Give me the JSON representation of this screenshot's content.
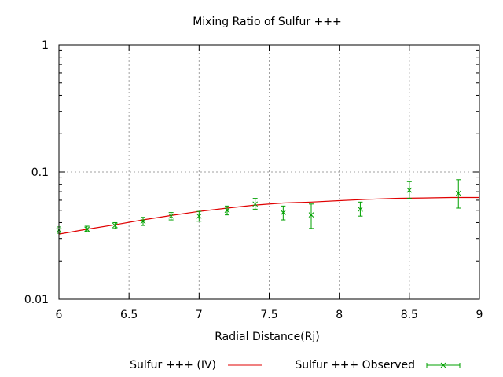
{
  "chart_data": {
    "type": "line",
    "title": "Mixing Ratio of Sulfur +++",
    "xlabel": "Radial Distance(Rj)",
    "ylabel": "",
    "xlim": [
      6,
      9
    ],
    "ylim": [
      0.01,
      1
    ],
    "y_scale": "log",
    "grid": true,
    "legend_position": "bottom",
    "x_ticks": [
      6,
      6.5,
      7,
      7.5,
      8,
      8.5,
      9
    ],
    "x_tick_labels": [
      "6",
      "6.5",
      "7",
      "7.5",
      "8",
      "8.5",
      "9"
    ],
    "y_ticks": [
      0.01,
      0.1,
      1
    ],
    "y_tick_labels": [
      "0.01",
      "0.1",
      "1"
    ],
    "series": [
      {
        "name": "Sulfur +++ (IV)",
        "kind": "line",
        "color": "#e00000",
        "x": [
          6.0,
          6.2,
          6.4,
          6.6,
          6.8,
          7.0,
          7.2,
          7.4,
          7.6,
          7.8,
          8.0,
          8.2,
          8.4,
          8.6,
          8.8,
          9.0
        ],
        "y": [
          0.0325,
          0.0355,
          0.0385,
          0.042,
          0.0455,
          0.049,
          0.052,
          0.055,
          0.057,
          0.058,
          0.0595,
          0.061,
          0.062,
          0.0625,
          0.063,
          0.063
        ]
      },
      {
        "name": "Sulfur +++ Observed",
        "kind": "errorbars",
        "color": "#00a000",
        "x": [
          6.0,
          6.2,
          6.4,
          6.6,
          6.8,
          7.0,
          7.2,
          7.4,
          7.6,
          7.8,
          8.15,
          8.5,
          8.85
        ],
        "y": [
          0.035,
          0.0355,
          0.038,
          0.041,
          0.045,
          0.045,
          0.05,
          0.056,
          0.048,
          0.046,
          0.051,
          0.072,
          0.068
        ],
        "y_low": [
          0.033,
          0.034,
          0.036,
          0.038,
          0.042,
          0.041,
          0.046,
          0.051,
          0.042,
          0.036,
          0.045,
          0.062,
          0.052
        ],
        "y_high": [
          0.037,
          0.0375,
          0.04,
          0.044,
          0.048,
          0.049,
          0.054,
          0.062,
          0.054,
          0.056,
          0.058,
          0.084,
          0.087
        ]
      }
    ]
  }
}
